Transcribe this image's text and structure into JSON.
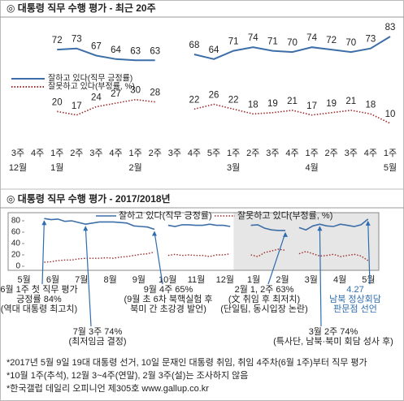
{
  "chart_data": [
    {
      "type": "line",
      "title": "◎  대통령 직무 수행 평가 - 최근 20주",
      "categories": [
        "3주",
        "4주",
        "1주",
        "2주",
        "3주",
        "4주",
        "1주",
        "2주",
        "3주",
        "4주",
        "5주",
        "1주",
        "2주",
        "3주",
        "4주",
        "1주",
        "2주",
        "3주",
        "4주",
        "1주"
      ],
      "months": [
        "12월",
        null,
        "1월",
        null,
        null,
        null,
        "2월",
        null,
        null,
        null,
        null,
        "3월",
        null,
        null,
        null,
        "4월",
        null,
        null,
        null,
        "5월"
      ],
      "series": [
        {
          "name": "잘하고 있다(직무 긍정률)",
          "color": "#3d6ea8",
          "style": "solid",
          "values": [
            null,
            null,
            72,
            73,
            67,
            64,
            63,
            63,
            null,
            68,
            64,
            71,
            74,
            71,
            70,
            74,
            72,
            70,
            73,
            83
          ]
        },
        {
          "name": "잘못하고 있다(부정률, %)",
          "color": "#9e2a2a",
          "style": "dotted",
          "values": [
            null,
            null,
            20,
            17,
            24,
            27,
            30,
            28,
            null,
            22,
            26,
            22,
            18,
            19,
            21,
            17,
            19,
            21,
            18,
            10
          ]
        }
      ],
      "data_labels": true
    },
    {
      "type": "line",
      "title": "◎  대통령 직무 수행 평가 - 2017/2018년",
      "x": [
        1.2,
        1.44,
        1.68,
        1.92,
        2.16,
        2.4,
        2.64,
        2.88,
        3.12,
        3.36,
        3.6,
        3.84,
        4.08,
        4.32,
        4.56,
        4.8,
        5.04,
        5.28,
        5.52,
        5.76,
        6,
        6.24,
        6.48,
        6.72,
        6.96,
        7.2,
        7.44,
        7.68,
        7.92,
        8.16,
        8.4,
        8.64,
        8.88,
        9.12,
        9.36,
        9.6,
        9.84,
        10.08,
        10.32,
        10.56,
        10.8,
        11.04,
        11.28,
        11.52,
        11.76,
        12,
        12.24,
        12.48
      ],
      "xlim": [
        0,
        12.8
      ],
      "xticks": [
        {
          "value": 0.5,
          "label": "5월"
        },
        {
          "value": 1.5,
          "label": "6월"
        },
        {
          "value": 2.5,
          "label": "7월"
        },
        {
          "value": 3.5,
          "label": "8월"
        },
        {
          "value": 4.5,
          "label": "9월"
        },
        {
          "value": 5.5,
          "label": "10월"
        },
        {
          "value": 6.5,
          "label": "11월"
        },
        {
          "value": 7.5,
          "label": "12월"
        },
        {
          "value": 8.5,
          "label": "1월"
        },
        {
          "value": 9.5,
          "label": "2월"
        },
        {
          "value": 10.5,
          "label": "3월"
        },
        {
          "value": 11.5,
          "label": "4월"
        },
        {
          "value": 12.5,
          "label": "5월"
        }
      ],
      "ylim": [
        0,
        90
      ],
      "yticks": [
        0,
        20,
        40,
        60,
        80
      ],
      "series": [
        {
          "name": "잘하고 있다(직무 긍정률)",
          "color": "#3d6ea8",
          "style": "solid",
          "values": [
            84,
            82,
            83,
            79,
            80,
            77,
            74,
            76,
            78,
            78,
            78,
            77,
            76,
            71,
            70,
            69,
            65,
            null,
            72,
            70,
            73,
            73,
            72,
            72,
            74,
            72,
            72,
            70,
            null,
            null,
            72,
            73,
            67,
            64,
            63,
            63,
            null,
            68,
            64,
            71,
            74,
            71,
            70,
            74,
            72,
            70,
            73,
            83
          ]
        },
        {
          "name": "잘못하고 있다(부정률, %)",
          "color": "#9e2a2a",
          "style": "dotted",
          "values": [
            7,
            8,
            10,
            11,
            11,
            13,
            14,
            14,
            14,
            15,
            14,
            16,
            17,
            19,
            21,
            22,
            25,
            null,
            19,
            21,
            19,
            20,
            19,
            19,
            17,
            20,
            20,
            22,
            null,
            null,
            20,
            17,
            24,
            27,
            30,
            28,
            null,
            22,
            26,
            22,
            18,
            19,
            21,
            17,
            19,
            21,
            18,
            10
          ]
        }
      ],
      "annotations": [
        {
          "lines": [
            "6월 1주 첫 직무 평가",
            "긍정률 84%",
            "(역대 대통령 최고치)"
          ],
          "color": "#222222"
        },
        {
          "lines": [
            "7월 3주 74%",
            "(최저임금 결정)"
          ],
          "color": "#222222"
        },
        {
          "lines": [
            "9월 4주 65%",
            "(9월 초 6차 북핵실험 후",
            "북미 간 초강경 발언)"
          ],
          "color": "#222222"
        },
        {
          "lines": [
            "2월 1, 2주 63%",
            "(文 취임 후 최저치)",
            "(단일팀, 동시입장 논란)"
          ],
          "color": "#222222"
        },
        {
          "lines": [
            "3월 2주 74%",
            "(특사단, 남북·북미 회담 성사 후)"
          ],
          "color": "#222222"
        },
        {
          "lines": [
            "4.27",
            "남북 정상회담",
            "판문점 선언"
          ],
          "color": "#2f6db0"
        }
      ]
    }
  ],
  "notes": [
    "*2017년 5월 9일 19대 대통령 선거, 10일 문재인 대통령 취임, 취임 4주차(6월 1주)부터 직무 평가",
    "*10월 1주(추석), 12월 3~4주(연말), 2월 3주(설)는 조사하지 않음",
    "*한국갤럽 데일리 오피니언 제305호 www.gallup.co.kr"
  ]
}
